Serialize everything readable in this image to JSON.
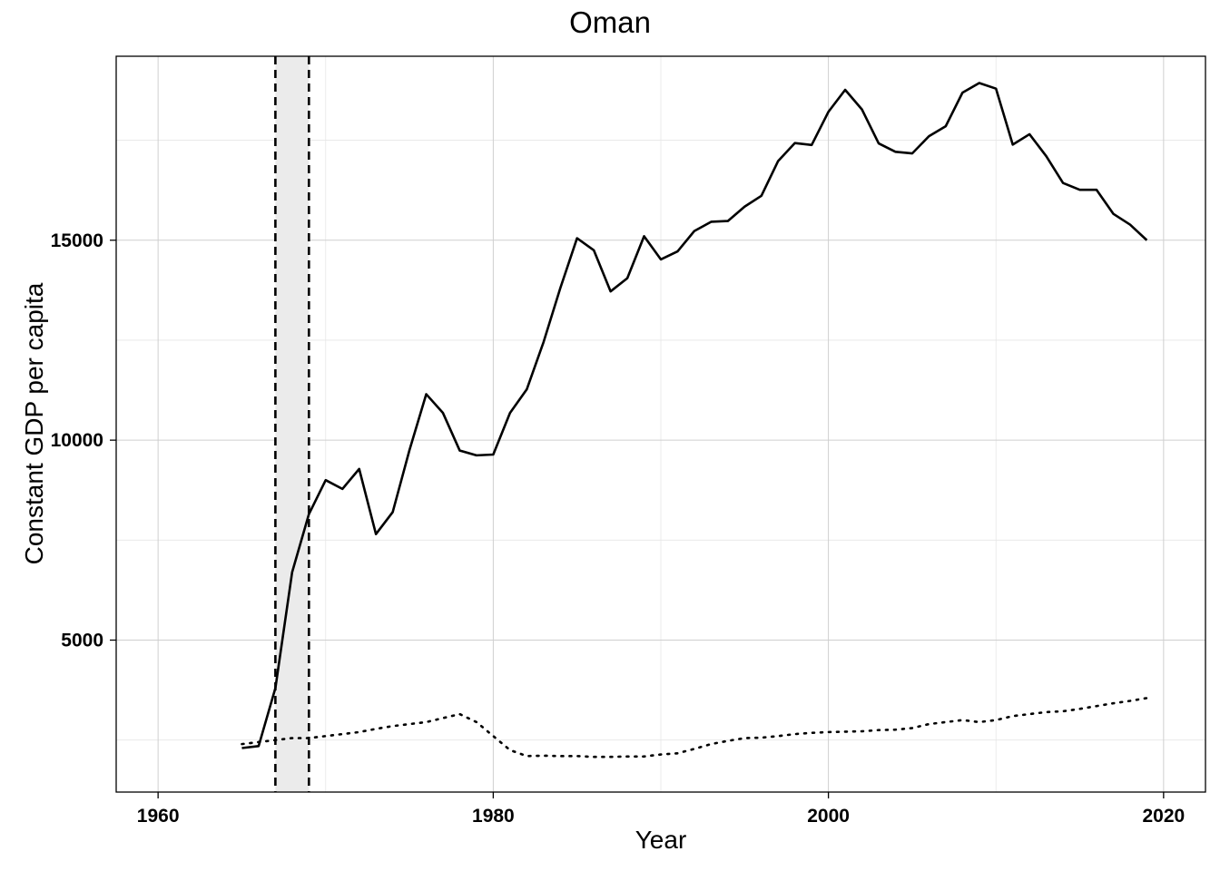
{
  "chart_data": {
    "type": "line",
    "title": "Oman",
    "xlabel": "Year",
    "ylabel": "Constant GDP per capita",
    "xlim": [
      1957.5,
      2022.5
    ],
    "ylim": [
      1200,
      19600
    ],
    "x_ticks": [
      1960,
      1980,
      2000,
      2020
    ],
    "y_ticks": [
      5000,
      10000,
      15000
    ],
    "grid": true,
    "legend": "none",
    "shaded_period": {
      "start": 1967,
      "end": 1969
    },
    "series": [
      {
        "style": "solid",
        "x": [
          1965,
          1966,
          1967,
          1968,
          1969,
          1970,
          1971,
          1972,
          1973,
          1974,
          1975,
          1976,
          1977,
          1978,
          1979,
          1980,
          1981,
          1982,
          1983,
          1984,
          1985,
          1986,
          1987,
          1988,
          1989,
          1990,
          1991,
          1992,
          1993,
          1994,
          1995,
          1996,
          1997,
          1998,
          1999,
          2000,
          2001,
          2002,
          2003,
          2004,
          2005,
          2006,
          2007,
          2008,
          2009,
          2010,
          2011,
          2012,
          2013,
          2014,
          2015,
          2016,
          2017,
          2018,
          2019
        ],
        "values": [
          2300,
          2350,
          3800,
          6700,
          8150,
          9000,
          8780,
          9280,
          7650,
          8200,
          9750,
          11150,
          10680,
          9740,
          9620,
          9640,
          10680,
          11270,
          12450,
          13800,
          15050,
          14750,
          13720,
          14050,
          15100,
          14520,
          14720,
          15230,
          15460,
          15480,
          15840,
          16110,
          16980,
          17430,
          17380,
          18210,
          18760,
          18270,
          17420,
          17210,
          17170,
          17600,
          17850,
          18690,
          18930,
          18790,
          17390,
          17650,
          17100,
          16430,
          16260,
          16260,
          15660,
          15390,
          15000
        ]
      },
      {
        "style": "dotted",
        "x": [
          1965,
          1966,
          1967,
          1968,
          1969,
          1970,
          1971,
          1972,
          1973,
          1974,
          1975,
          1976,
          1977,
          1978,
          1979,
          1980,
          1981,
          1982,
          1983,
          1984,
          1985,
          1986,
          1987,
          1988,
          1989,
          1990,
          1991,
          1992,
          1993,
          1994,
          1995,
          1996,
          1997,
          1998,
          1999,
          2000,
          2001,
          2002,
          2003,
          2004,
          2005,
          2006,
          2007,
          2008,
          2009,
          2010,
          2011,
          2012,
          2013,
          2014,
          2015,
          2016,
          2017,
          2018,
          2019
        ],
        "values": [
          2400,
          2450,
          2500,
          2550,
          2550,
          2600,
          2650,
          2700,
          2780,
          2850,
          2900,
          2950,
          3050,
          3150,
          2950,
          2600,
          2250,
          2100,
          2110,
          2100,
          2100,
          2080,
          2080,
          2090,
          2090,
          2140,
          2170,
          2280,
          2400,
          2480,
          2550,
          2560,
          2600,
          2650,
          2680,
          2700,
          2710,
          2720,
          2750,
          2760,
          2800,
          2900,
          2950,
          3000,
          2950,
          3000,
          3100,
          3150,
          3200,
          3220,
          3280,
          3350,
          3420,
          3480,
          3550
        ]
      }
    ]
  }
}
